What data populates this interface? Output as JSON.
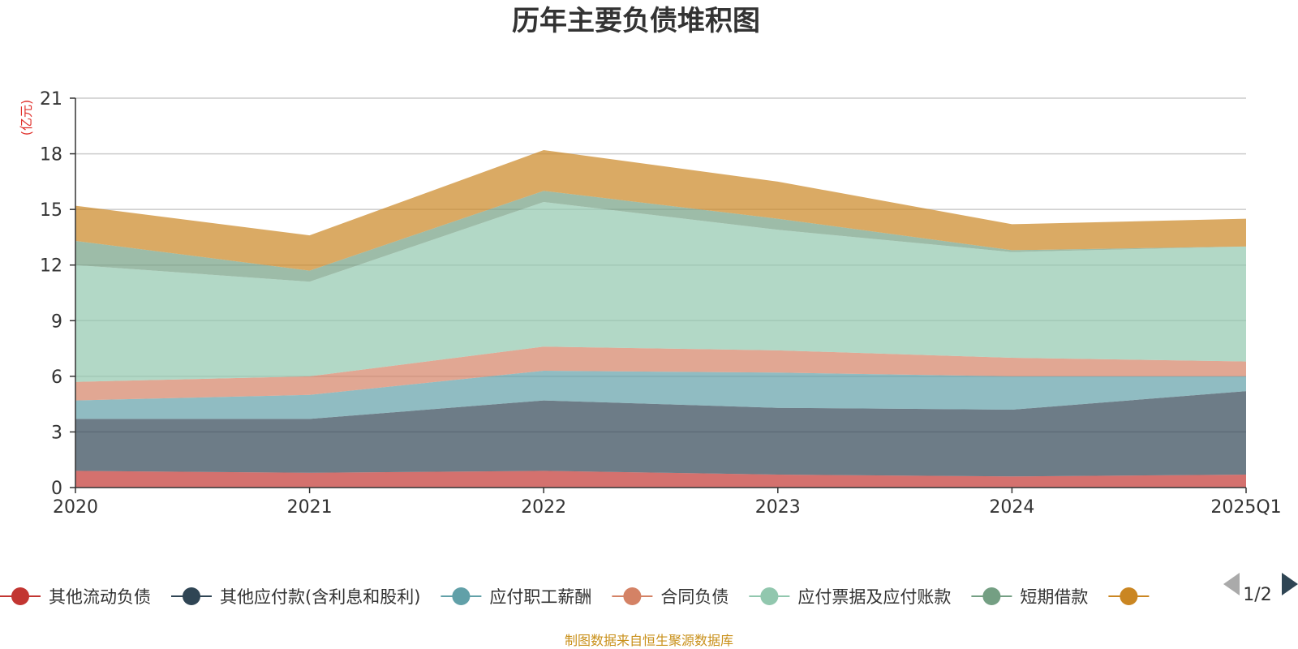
{
  "chart_data": {
    "type": "area",
    "title": "历年主要负债堆积图",
    "unit_label": "(亿元)",
    "categories": [
      "2020",
      "2021",
      "2022",
      "2023",
      "2024",
      "2025Q1"
    ],
    "ylim": [
      0,
      21
    ],
    "yticks": [
      0,
      3,
      6,
      9,
      12,
      15,
      18,
      21
    ],
    "grid": true,
    "stacked": true,
    "series": [
      {
        "name": "其他流动负债",
        "color": "#c23531",
        "values": [
          0.9,
          0.8,
          0.9,
          0.7,
          0.6,
          0.7
        ]
      },
      {
        "name": "其他应付款(含利息和股利)",
        "color": "#2f4554",
        "values": [
          2.8,
          2.9,
          3.8,
          3.6,
          3.6,
          4.5
        ]
      },
      {
        "name": "应付职工薪酬",
        "color": "#61a0a8",
        "values": [
          1.0,
          1.3,
          1.6,
          1.9,
          1.8,
          0.8
        ]
      },
      {
        "name": "合同负债",
        "color": "#d48265",
        "values": [
          1.0,
          1.0,
          1.3,
          1.2,
          1.0,
          0.8
        ]
      },
      {
        "name": "应付票据及应付账款",
        "color": "#91c7ae",
        "values": [
          6.3,
          5.1,
          7.8,
          6.5,
          5.7,
          6.2
        ]
      },
      {
        "name": "短期借款",
        "color": "#749f83",
        "values": [
          1.3,
          0.6,
          0.6,
          0.6,
          0.1,
          0.0
        ]
      },
      {
        "name": "",
        "color": "#ca8622",
        "values": [
          1.9,
          1.9,
          2.2,
          2.0,
          1.4,
          1.5
        ]
      }
    ]
  },
  "legend": {
    "page_indicator": "1/2"
  },
  "source_note": "制图数据来自恒生聚源数据库"
}
